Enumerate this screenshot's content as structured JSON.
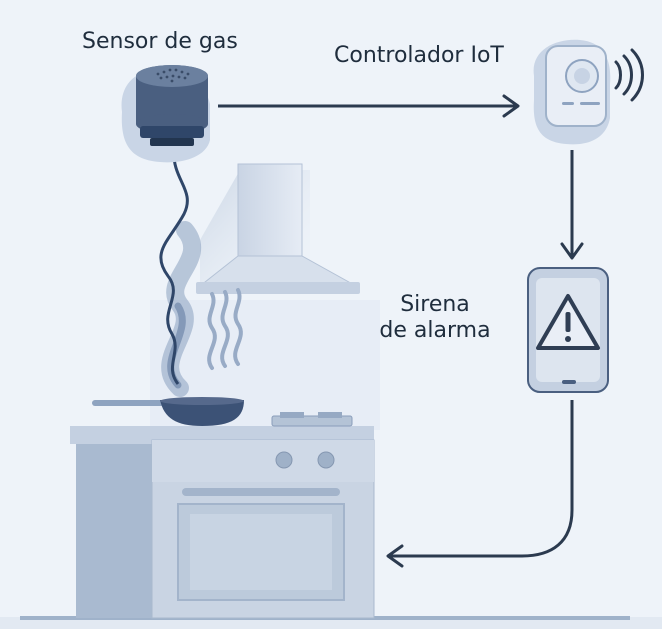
{
  "labels": {
    "gas_sensor": "Sensor de gas",
    "iot_controller": "Controlador IoT",
    "siren_line1": "Sirena",
    "siren_line2": "de alarma"
  },
  "icons": {
    "sensor": "gas-sensor-icon",
    "controller": "iot-controller-icon",
    "siren": "warning-triangle-icon",
    "wifi": "wireless-signal-icon"
  },
  "colors": {
    "background": "#eef3f9",
    "arrow": "#2b3a4f",
    "device_dark": "#4a5f80",
    "device_light": "#e9eef6",
    "stove": "#b7c6da",
    "warning": "#2f3e54"
  }
}
